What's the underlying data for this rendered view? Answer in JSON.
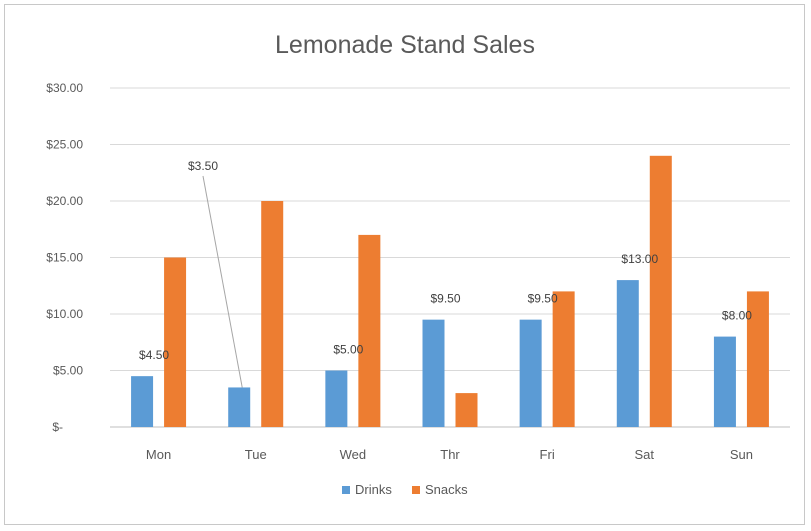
{
  "chart_data": {
    "type": "bar",
    "title": "Lemonade Stand Sales",
    "categories": [
      "Mon",
      "Tue",
      "Wed",
      "Thr",
      "Fri",
      "Sat",
      "Sun"
    ],
    "series": [
      {
        "name": "Drinks",
        "color": "#5b9bd5",
        "values": [
          4.5,
          3.5,
          5.0,
          9.5,
          9.5,
          13.0,
          8.0
        ]
      },
      {
        "name": "Snacks",
        "color": "#ed7d31",
        "values": [
          15,
          20,
          17,
          3,
          12,
          24,
          12
        ]
      }
    ],
    "ylim": [
      0,
      30
    ],
    "y_ticks": [
      "$-",
      "$5.00",
      "$10.00",
      "$15.00",
      "$20.00",
      "$25.00",
      "$30.00"
    ],
    "data_labels": {
      "series": "Drinks",
      "texts": [
        "$4.50",
        "$3.50",
        "$5.00",
        "$9.50",
        "$9.50",
        "$13.00",
        "$8.00"
      ]
    },
    "grid": true,
    "legend_position": "bottom"
  }
}
